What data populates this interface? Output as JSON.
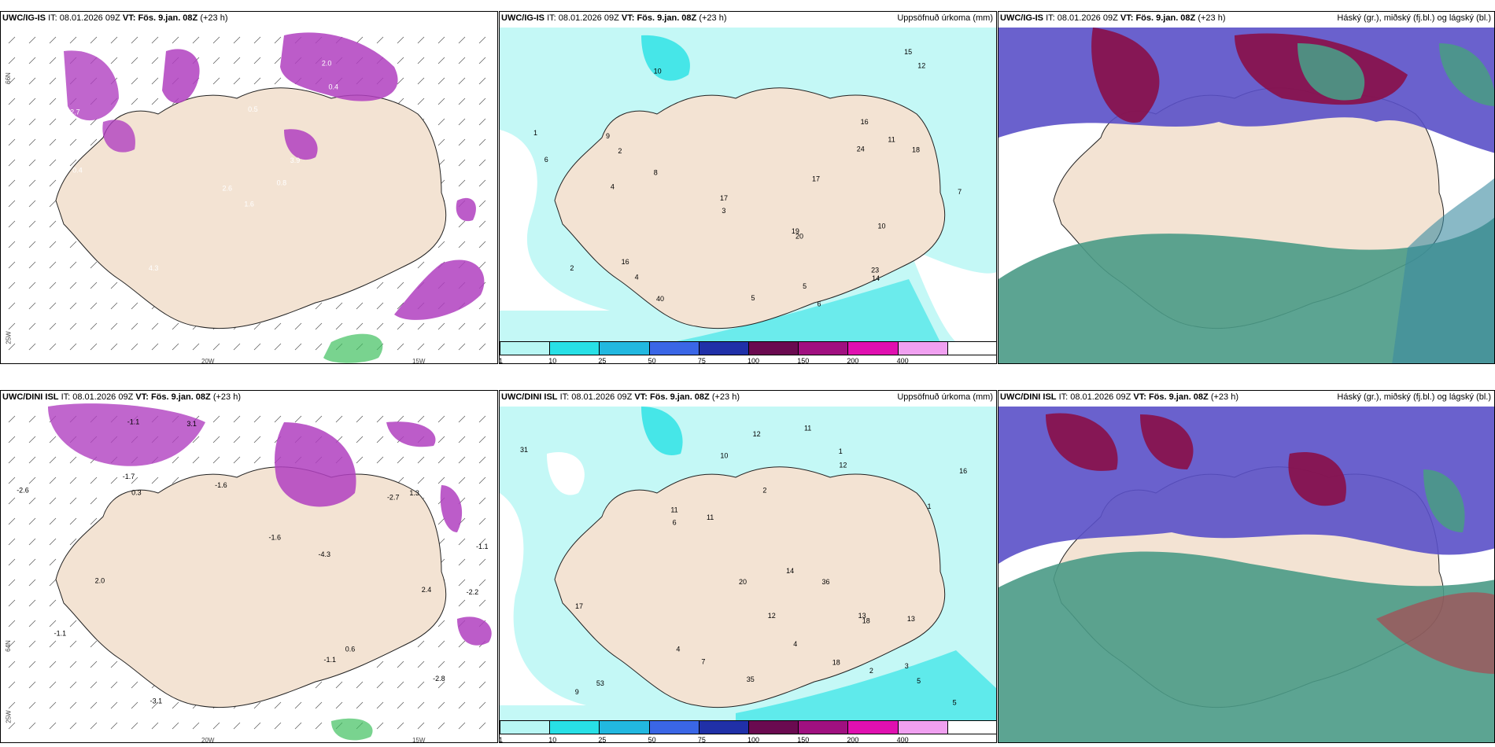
{
  "panels": [
    {
      "model": "UWC/IG-IS",
      "it_label": "IT:",
      "it_value": "08.01.2026 09Z",
      "vt_label": "VT:",
      "vt_value": "Fös. 9.jan. 08Z",
      "lead": "(+23 h)",
      "right_title": ""
    },
    {
      "model": "UWC/IG-IS",
      "it_label": "IT:",
      "it_value": "08.01.2026 09Z",
      "vt_label": "VT:",
      "vt_value": "Fös. 9.jan. 08Z",
      "lead": "(+23 h)",
      "right_title": "Uppsöfnuð úrkoma (mm)"
    },
    {
      "model": "UWC/IG-IS",
      "it_label": "IT:",
      "it_value": "08.01.2026 09Z",
      "vt_label": "VT:",
      "vt_value": "Fös. 9.jan. 08Z",
      "lead": "(+23 h)",
      "right_title": "Háský (gr.), miðský (fj.bl.) og lágský (bl.)"
    },
    {
      "model": "UWC/DINI ISL",
      "it_label": "IT:",
      "it_value": "08.01.2026 09Z",
      "vt_label": "VT:",
      "vt_value": "Fös. 9.jan. 08Z",
      "lead": "(+23 h)",
      "right_title": ""
    },
    {
      "model": "UWC/DINI ISL",
      "it_label": "IT:",
      "it_value": "08.01.2026 09Z",
      "vt_label": "VT:",
      "vt_value": "Fös. 9.jan. 08Z",
      "lead": "(+23 h)",
      "right_title": "Uppsöfnuð úrkoma (mm)"
    },
    {
      "model": "UWC/DINI ISL",
      "it_label": "IT:",
      "it_value": "08.01.2026 09Z",
      "vt_label": "VT:",
      "vt_value": "Fös. 9.jan. 08Z",
      "lead": "(+23 h)",
      "right_title": "Háský (gr.), miðský (fj.bl.) og lágský (bl.)"
    }
  ],
  "axis_labels": {
    "lon_20": "20W",
    "lon_15": "15W",
    "lat_66": "66N",
    "lat_64": "64N",
    "lat_25w": "25W"
  },
  "legend": {
    "labels": [
      "1",
      "10",
      "25",
      "50",
      "75",
      "100",
      "150",
      "200",
      "400",
      ""
    ],
    "colors": [
      "#b8f7f4",
      "#28e0e6",
      "#22b8e0",
      "#3a66e6",
      "#2030a8",
      "#6a0a50",
      "#a01080",
      "#e010b0",
      "#f0a0f0",
      "#ffffff"
    ]
  },
  "colors": {
    "land": "#f3e3d3",
    "precip_light": "#c4f8f6",
    "precip_mid": "#46e6e8",
    "high_cloud": "#4a9a86",
    "mid_cloud": "#8a1048",
    "low_cloud": "#5a50c8",
    "convective": "#b040c0"
  },
  "ig_left_values": [
    "1.6",
    "2.7",
    "2.6",
    "3.1",
    "3.9",
    "4.3",
    "2.0",
    "0.5",
    "0.4",
    "0.8",
    "0.7",
    "0.6",
    "0.4",
    "0.3"
  ],
  "ig_precip_values": [
    "6",
    "10",
    "16",
    "9",
    "11",
    "5",
    "7",
    "8",
    "3",
    "4",
    "2",
    "1",
    "17",
    "19",
    "24",
    "15",
    "6",
    "12",
    "10",
    "18",
    "23",
    "20",
    "40",
    "14",
    "17",
    "16",
    "4",
    "2",
    "5"
  ],
  "dini_left_values": [
    "-2.2",
    "-1.1",
    "-2.7",
    "-1.6",
    "-1.7",
    "-3.1",
    "-1.6",
    "-2.8",
    "-1.1",
    "-4.3",
    "-2.6",
    "-1.1",
    "-1.1",
    "2.4",
    "3.1",
    "2.0",
    "1.3",
    "0.6",
    "0.3"
  ],
  "dini_precip_values": [
    "9",
    "13",
    "14",
    "12",
    "10",
    "11",
    "3",
    "1",
    "2",
    "4",
    "5",
    "6",
    "7",
    "12",
    "18",
    "11",
    "13",
    "17",
    "20",
    "16",
    "31",
    "53",
    "35",
    "36",
    "18",
    "12",
    "11",
    "2",
    "1",
    "4",
    "5"
  ]
}
